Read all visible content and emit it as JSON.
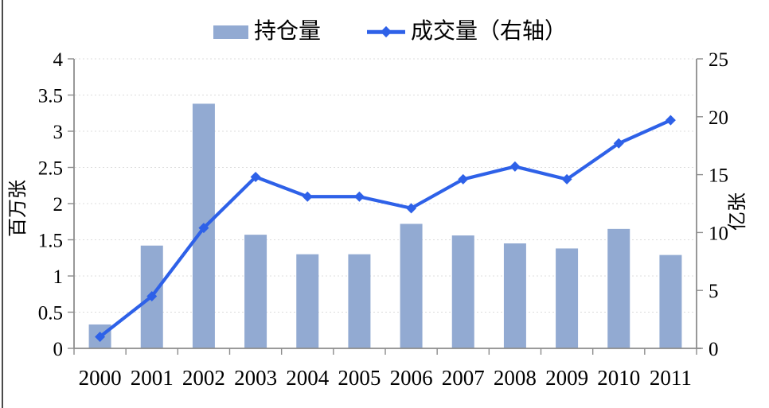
{
  "legend": {
    "items": [
      {
        "label": "持仓量",
        "type": "bar"
      },
      {
        "label": "成交量（右轴）",
        "type": "line"
      }
    ]
  },
  "chart_data": {
    "type": "bar",
    "combo": "bar+line dual-axis",
    "title": "",
    "categories": [
      "2000",
      "2001",
      "2002",
      "2003",
      "2004",
      "2005",
      "2006",
      "2007",
      "2008",
      "2009",
      "2010",
      "2011"
    ],
    "series": [
      {
        "name": "持仓量",
        "type": "bar",
        "axis": "left",
        "color": "#92aad2",
        "values": [
          0.33,
          1.42,
          3.38,
          1.57,
          1.3,
          1.3,
          1.72,
          1.56,
          1.45,
          1.38,
          1.65,
          1.29
        ]
      },
      {
        "name": "成交量（右轴）",
        "type": "line",
        "axis": "right",
        "color": "#2e61e8",
        "marker": "diamond",
        "values": [
          1.0,
          4.5,
          10.4,
          14.8,
          13.1,
          13.1,
          12.1,
          14.6,
          15.7,
          14.6,
          17.7,
          19.7
        ]
      }
    ],
    "left_axis": {
      "title": "百万张",
      "min": 0,
      "max": 4,
      "tick_values": [
        0,
        0.5,
        1,
        1.5,
        2,
        2.5,
        3,
        3.5,
        4
      ],
      "tick_labels": [
        "0",
        "0.5",
        "1",
        "1.5",
        "2",
        "2.5",
        "3",
        "3.5",
        "4"
      ]
    },
    "right_axis": {
      "title": "亿张",
      "min": 0,
      "max": 25,
      "tick_values": [
        0,
        5,
        10,
        15,
        20,
        25
      ],
      "tick_labels": [
        "0",
        "5",
        "10",
        "15",
        "20",
        "25"
      ]
    },
    "grid": "horizontal dotted",
    "legend_position": "top-center"
  }
}
